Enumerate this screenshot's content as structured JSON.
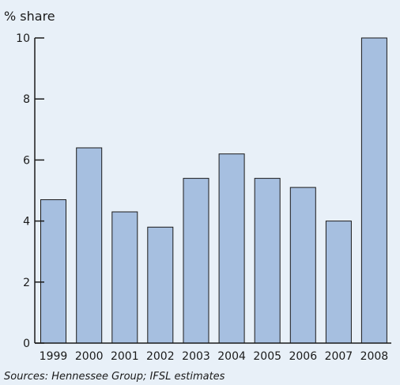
{
  "chart_data": {
    "type": "bar",
    "ylabel": "% share",
    "categories": [
      "1999",
      "2000",
      "2001",
      "2002",
      "2003",
      "2004",
      "2005",
      "2006",
      "2007",
      "2008"
    ],
    "values": [
      4.7,
      6.4,
      4.3,
      3.8,
      5.4,
      6.2,
      5.4,
      5.1,
      4.0,
      10.0
    ],
    "ylim": [
      0,
      10
    ],
    "yticks": [
      "0",
      "2",
      "4",
      "6",
      "8",
      "10"
    ],
    "source": "Sources: Hennessee Group; IFSL estimates",
    "colors": {
      "bar": "#a6bfe0",
      "background": "#e8f0f8"
    },
    "grid": false
  }
}
